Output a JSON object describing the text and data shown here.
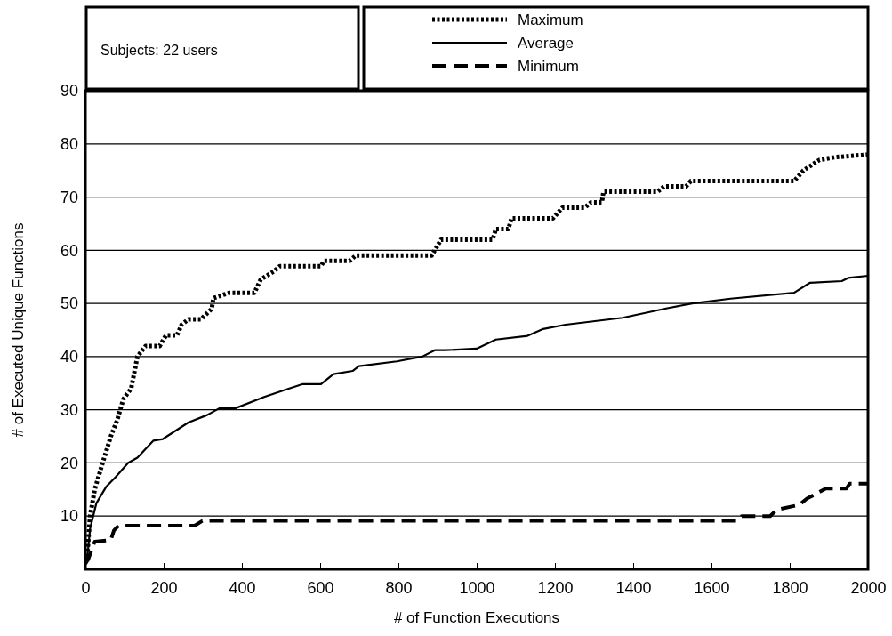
{
  "chart_data": {
    "type": "line",
    "xlabel": "# of Function Executions",
    "ylabel": "# of Executed Unique Functions",
    "annotations": [
      "Subjects: 22 users"
    ],
    "xlim": [
      0,
      2000
    ],
    "xticks": [
      0,
      200,
      400,
      600,
      800,
      1000,
      1200,
      1400,
      1600,
      1800,
      2000
    ],
    "ylim": [
      0,
      90
    ],
    "yticks": [
      10,
      20,
      30,
      40,
      50,
      60,
      70,
      80,
      90
    ],
    "grid": "y",
    "legend": "top right",
    "series": [
      {
        "name": "Maximum",
        "color": "#000000",
        "line_style": "dotted",
        "x": [
          4,
          12,
          24,
          44,
          65,
          81,
          97,
          117,
          133,
          154,
          190,
          206,
          234,
          246,
          263,
          295,
          323,
          327,
          368,
          432,
          448,
          481,
          497,
          602,
          610,
          675,
          691,
          885,
          909,
          919,
          1041,
          1049,
          1081,
          1089,
          1195,
          1219,
          1276,
          1292,
          1320,
          1324,
          1462,
          1479,
          1535,
          1547,
          1811,
          1835,
          1876,
          1916,
          2000
        ],
        "values": [
          1.5,
          10,
          15,
          20,
          25,
          28,
          32,
          34,
          40,
          42,
          42,
          44,
          44,
          46,
          47,
          47,
          49,
          51,
          52,
          52,
          54.5,
          56,
          57,
          57,
          58,
          58,
          59,
          59,
          62,
          62,
          62,
          64,
          64,
          66,
          66,
          68,
          68,
          69,
          69,
          71,
          71,
          72,
          72,
          73,
          73,
          75,
          77,
          77.5,
          78
        ]
      },
      {
        "name": "Average",
        "color": "#000000",
        "line_style": "solid",
        "x": [
          4,
          12,
          28,
          53,
          77,
          109,
          133,
          174,
          198,
          263,
          311,
          343,
          384,
          457,
          521,
          554,
          602,
          634,
          683,
          699,
          796,
          861,
          893,
          919,
          1000,
          1049,
          1130,
          1170,
          1227,
          1373,
          1487,
          1551,
          1649,
          1811,
          1852,
          1933,
          1949,
          2000
        ],
        "values": [
          1.5,
          7.6,
          12.4,
          15.5,
          17.3,
          20,
          21,
          24.2,
          24.5,
          27.6,
          29,
          30.3,
          30.3,
          32.4,
          34,
          34.8,
          34.8,
          36.7,
          37.3,
          38.2,
          39.1,
          40,
          41.2,
          41.2,
          41.5,
          43.2,
          43.9,
          45.2,
          46,
          47.3,
          49.1,
          50,
          50.9,
          52,
          53.9,
          54.2,
          54.8,
          55.2
        ]
      },
      {
        "name": "Minimum",
        "color": "#000000",
        "line_style": "dashed",
        "x": [
          0,
          8,
          20,
          24,
          65,
          73,
          85,
          279,
          299,
          1665,
          1677,
          1750,
          1767,
          1824,
          1844,
          1868,
          1892,
          1945,
          1953,
          2000
        ],
        "values": [
          1,
          2,
          4.5,
          5.2,
          5.5,
          7.3,
          8.2,
          8.2,
          9.1,
          9.1,
          10,
          10,
          11.2,
          12.1,
          13.3,
          14.2,
          15.2,
          15.2,
          16.1,
          16.1
        ]
      }
    ]
  }
}
